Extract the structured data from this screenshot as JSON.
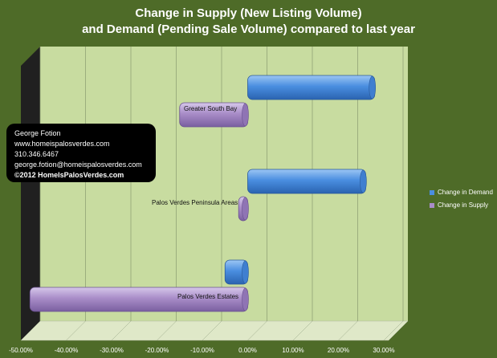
{
  "chart_data": {
    "type": "bar",
    "orientation": "horizontal",
    "title": "Change in Supply (New Listing Volume)",
    "subtitle": "and Demand (Pending Sale Volume) compared to last year",
    "categories": [
      "Greater South Bay",
      "Palos Verdes Peninsula Areas",
      "Palos Verdes Estates"
    ],
    "series": [
      {
        "name": "Change in Demand",
        "values": [
          0.28,
          0.26,
          -0.05
        ],
        "color": "#4a8ee0"
      },
      {
        "name": "Change in Supply",
        "values": [
          -0.15,
          -0.02,
          -0.48
        ],
        "color": "#a98dc8"
      }
    ],
    "xlim": [
      -0.5,
      0.3
    ],
    "xticks": [
      "-50.00%",
      "-40.00%",
      "-30.00%",
      "-20.00%",
      "-10.00%",
      "0.00%",
      "10.00%",
      "20.00%",
      "30.00%"
    ],
    "grid": true,
    "legend_position": "right"
  },
  "contact": {
    "name": "George Fotion",
    "website": "www.homeispalosverdes.com",
    "phone": "310.346.6467",
    "email": "george.fotion@homeispalosverdes.com",
    "copyright": "©2012 HomeIsPalosVerdes.com"
  },
  "colors": {
    "background": "#4e6b28",
    "plot_area": "#c8dca0",
    "floor": "#dfe8c8",
    "side_wall": "#202020"
  }
}
